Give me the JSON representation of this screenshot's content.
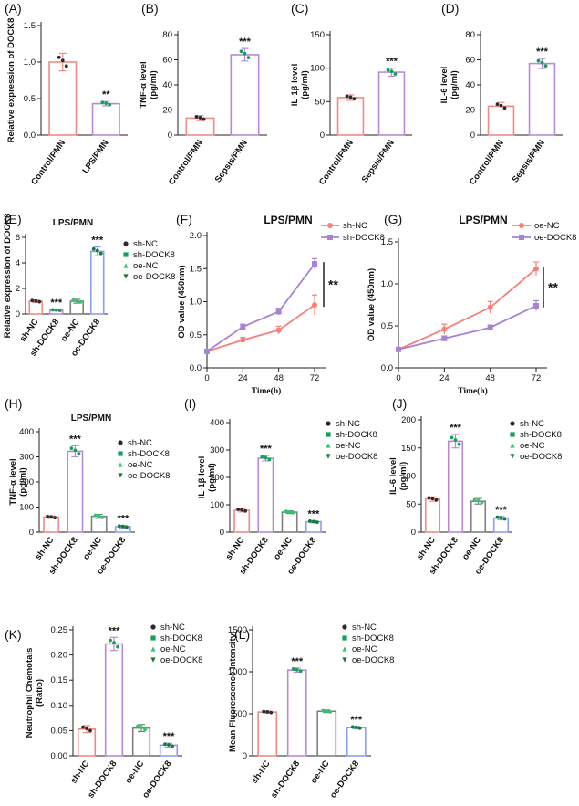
{
  "colors": {
    "red": "#f08a86",
    "purple": "#b98ad3",
    "gray": "#808080",
    "blue": "#8c9ef0",
    "line_red": "#f4807a",
    "line_purple": "#a882d3",
    "dot_black": "#2a2a2a",
    "dot_green": "#14a05a",
    "dot_lightgreen": "#2ec76a",
    "dot_darkgreen": "#0f7a30"
  },
  "chart_data": [
    {
      "id": "A",
      "panel_label": "(A)",
      "type": "bar",
      "ylabel": "Relative expression of DOCK8",
      "ylim": [
        0,
        1.5
      ],
      "yticks": [
        "0.0",
        "0.5",
        "1.0",
        "1.5"
      ],
      "ytick_values": [
        0,
        0.5,
        1.0,
        1.5
      ],
      "categories": [
        "Control/PMN",
        "LPS/PMN"
      ],
      "values": [
        1.0,
        0.43
      ],
      "errors": [
        0.12,
        0.03
      ],
      "bar_colors": [
        "red",
        "purple"
      ],
      "annotations": [
        "",
        "**"
      ]
    },
    {
      "id": "B",
      "panel_label": "(B)",
      "type": "bar",
      "ylabel": "TNF-α level (pg/ml)",
      "ylabel_lines": [
        "TNF-α level",
        "(pg/ml)"
      ],
      "ylim": [
        0,
        80
      ],
      "yticks": [
        "0",
        "20",
        "40",
        "60",
        "80"
      ],
      "ytick_values": [
        0,
        20,
        40,
        60,
        80
      ],
      "categories": [
        "Control/PMN",
        "Sepsis/PMN"
      ],
      "values": [
        13.5,
        64
      ],
      "errors": [
        2,
        5
      ],
      "bar_colors": [
        "red",
        "purple"
      ],
      "annotations": [
        "",
        "***"
      ]
    },
    {
      "id": "C",
      "panel_label": "(C)",
      "type": "bar",
      "ylabel": "IL-1β level (pg/ml)",
      "ylabel_lines": [
        "IL-1β level",
        "(pg/ml)"
      ],
      "ylim": [
        0,
        150
      ],
      "yticks": [
        "0",
        "50",
        "100",
        "150"
      ],
      "ytick_values": [
        0,
        50,
        100,
        150
      ],
      "categories": [
        "Control/PMN",
        "Sepsis/PMN"
      ],
      "values": [
        56,
        94
      ],
      "errors": [
        4,
        6
      ],
      "bar_colors": [
        "red",
        "purple"
      ],
      "annotations": [
        "",
        "***"
      ]
    },
    {
      "id": "D",
      "panel_label": "(D)",
      "type": "bar",
      "ylabel": "IL-6 level (pg/ml)",
      "ylabel_lines": [
        "IL-6 level",
        "(pg/ml)"
      ],
      "ylim": [
        0,
        80
      ],
      "yticks": [
        "0",
        "20",
        "40",
        "60",
        "80"
      ],
      "ytick_values": [
        0,
        20,
        40,
        60,
        80
      ],
      "categories": [
        "Control/PMN",
        "Sepsis/PMN"
      ],
      "values": [
        23,
        57
      ],
      "errors": [
        3,
        4
      ],
      "bar_colors": [
        "red",
        "purple"
      ],
      "annotations": [
        "",
        "***"
      ]
    },
    {
      "id": "E",
      "panel_label": "(E)",
      "type": "bar",
      "title": "LPS/PMN",
      "ylabel": "Relative expression of DOCK8",
      "ylim": [
        0,
        6
      ],
      "yticks": [
        "0",
        "2",
        "4",
        "6"
      ],
      "ytick_values": [
        0,
        2,
        4,
        6
      ],
      "categories": [
        "sh-NC",
        "sh-DOCK8",
        "oe-NC",
        "oe-DOCK8"
      ],
      "values": [
        1.0,
        0.3,
        1.0,
        4.9
      ],
      "errors": [
        0.1,
        0.06,
        0.15,
        0.35
      ],
      "bar_colors": [
        "red",
        "purple",
        "gray",
        "blue"
      ],
      "annotations": [
        "",
        "***",
        "",
        "***"
      ],
      "legend": [
        "sh-NC",
        "sh-DOCK8",
        "oe-NC",
        "oe-DOCK8"
      ]
    },
    {
      "id": "F",
      "panel_label": "(F)",
      "type": "line",
      "title": "LPS/PMN",
      "ylabel": "OD value (450nm)",
      "xlabel": "Time(h)",
      "x": [
        0,
        24,
        48,
        72
      ],
      "xticks": [
        "0",
        "24",
        "48",
        "72"
      ],
      "ylim": [
        0,
        2.0
      ],
      "yticks": [
        "0.0",
        "0.5",
        "1.0",
        "1.5",
        "2.0"
      ],
      "ytick_values": [
        0,
        0.5,
        1.0,
        1.5,
        2.0
      ],
      "series": [
        {
          "name": "sh-NC",
          "values": [
            0.25,
            0.42,
            0.57,
            0.95
          ],
          "errors": [
            0.02,
            0.04,
            0.06,
            0.15
          ],
          "color": "line_red",
          "marker": "circle"
        },
        {
          "name": "sh-DOCK8",
          "values": [
            0.25,
            0.62,
            0.85,
            1.57
          ],
          "errors": [
            0.02,
            0.04,
            0.05,
            0.08
          ],
          "color": "line_purple",
          "marker": "square"
        }
      ],
      "annotation": "**"
    },
    {
      "id": "G",
      "panel_label": "(G)",
      "type": "line",
      "title": "LPS/PMN",
      "ylabel": "OD value (450nm)",
      "xlabel": "Time(h)",
      "x": [
        0,
        24,
        48,
        72
      ],
      "xticks": [
        "0",
        "24",
        "48",
        "72"
      ],
      "ylim": [
        0,
        1.5
      ],
      "yticks": [
        "0.0",
        "0.5",
        "1.0",
        "1.5"
      ],
      "ytick_values": [
        0,
        0.5,
        1.0,
        1.5
      ],
      "series": [
        {
          "name": "oe-NC",
          "values": [
            0.22,
            0.46,
            0.72,
            1.18
          ],
          "errors": [
            0.02,
            0.06,
            0.07,
            0.08
          ],
          "color": "line_red",
          "marker": "circle"
        },
        {
          "name": "oe-DOCK8",
          "values": [
            0.22,
            0.35,
            0.48,
            0.74
          ],
          "errors": [
            0.02,
            0.03,
            0.03,
            0.06
          ],
          "color": "line_purple",
          "marker": "square"
        }
      ],
      "annotation": "**"
    },
    {
      "id": "H",
      "panel_label": "(H)",
      "type": "bar",
      "title": "LPS/PMN",
      "ylabel": "TNF-α level (pg/ml)",
      "ylabel_lines": [
        "TNF-α level",
        "(pg/ml)"
      ],
      "ylim": [
        0,
        400
      ],
      "yticks": [
        "0",
        "100",
        "200",
        "300",
        "400"
      ],
      "ytick_values": [
        0,
        100,
        200,
        300,
        400
      ],
      "categories": [
        "sh-NC",
        "sh-DOCK8",
        "oe-NC",
        "oe-DOCK8"
      ],
      "values": [
        60,
        322,
        63,
        22
      ],
      "errors": [
        5,
        22,
        8,
        5
      ],
      "bar_colors": [
        "red",
        "purple",
        "gray",
        "blue"
      ],
      "annotations": [
        "",
        "***",
        "",
        "***"
      ],
      "legend": [
        "sh-NC",
        "sh-DOCK8",
        "oe-NC",
        "oe-DOCK8"
      ]
    },
    {
      "id": "I",
      "panel_label": "(I)",
      "type": "bar",
      "ylabel": "IL-1β level (pg/ml)",
      "ylabel_lines": [
        "IL-1β level",
        "(pg/ml)"
      ],
      "ylim": [
        0,
        400
      ],
      "yticks": [
        "0",
        "100",
        "200",
        "300",
        "400"
      ],
      "ytick_values": [
        0,
        100,
        200,
        300,
        400
      ],
      "categories": [
        "sh-NC",
        "sh-DOCK8",
        "oe-NC",
        "oe-DOCK8"
      ],
      "values": [
        80,
        270,
        73,
        38
      ],
      "errors": [
        6,
        10,
        5,
        4
      ],
      "bar_colors": [
        "red",
        "purple",
        "gray",
        "blue"
      ],
      "annotations": [
        "",
        "***",
        "",
        "***"
      ],
      "legend": [
        "sh-NC",
        "sh-DOCK8",
        "oe-NC",
        "oe-DOCK8"
      ]
    },
    {
      "id": "J",
      "panel_label": "(J)",
      "type": "bar",
      "ylabel": "IL-6 level (pg/ml)",
      "ylabel_lines": [
        "IL-6 level",
        "(pg/ml)"
      ],
      "ylim": [
        0,
        200
      ],
      "yticks": [
        "0",
        "50",
        "100",
        "150",
        "200"
      ],
      "ytick_values": [
        0,
        50,
        100,
        150,
        200
      ],
      "categories": [
        "sh-NC",
        "sh-DOCK8",
        "oe-NC",
        "oe-DOCK8"
      ],
      "values": [
        59,
        162,
        55,
        25
      ],
      "errors": [
        4,
        12,
        5,
        3
      ],
      "bar_colors": [
        "red",
        "purple",
        "gray",
        "blue"
      ],
      "annotations": [
        "",
        "***",
        "",
        "***"
      ],
      "legend": [
        "sh-NC",
        "sh-DOCK8",
        "oe-NC",
        "oe-DOCK8"
      ]
    },
    {
      "id": "K",
      "panel_label": "(K)",
      "type": "bar",
      "ylabel": "Neutrophil Chemotais (Ratio)",
      "ylabel_lines": [
        "Neutrophil Chemotais",
        "(Ratio)"
      ],
      "ylim": [
        0,
        0.25
      ],
      "yticks": [
        "0.00",
        "0.05",
        "0.10",
        "0.15",
        "0.20",
        "0.25"
      ],
      "ytick_values": [
        0,
        0.05,
        0.1,
        0.15,
        0.2,
        0.25
      ],
      "categories": [
        "sh-NC",
        "sh-DOCK8",
        "oe-NC",
        "oe-DOCK8"
      ],
      "values": [
        0.053,
        0.222,
        0.055,
        0.021
      ],
      "errors": [
        0.007,
        0.013,
        0.007,
        0.004
      ],
      "bar_colors": [
        "red",
        "purple",
        "gray",
        "blue"
      ],
      "annotations": [
        "",
        "***",
        "",
        "***"
      ],
      "legend": [
        "sh-NC",
        "sh-DOCK8",
        "oe-NC",
        "oe-DOCK8"
      ]
    },
    {
      "id": "L",
      "panel_label": "(L)",
      "type": "bar",
      "ylabel": "Mean Fluorescence Intensity",
      "ylim": [
        0,
        1500
      ],
      "yticks": [
        "0",
        "500",
        "1000",
        "1500"
      ],
      "ytick_values": [
        0,
        500,
        1000,
        1500
      ],
      "categories": [
        "sh-NC",
        "sh-DOCK8",
        "oe-NC",
        "oe-DOCK8"
      ],
      "values": [
        520,
        1020,
        530,
        335
      ],
      "errors": [
        12,
        25,
        15,
        15
      ],
      "bar_colors": [
        "red",
        "purple",
        "gray",
        "blue"
      ],
      "annotations": [
        "",
        "***",
        "",
        "***"
      ],
      "legend": [
        "sh-NC",
        "sh-DOCK8",
        "oe-NC",
        "oe-DOCK8"
      ]
    }
  ]
}
